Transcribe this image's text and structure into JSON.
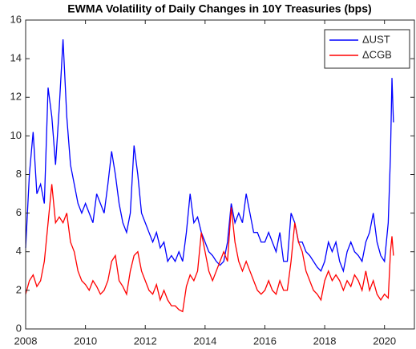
{
  "chart_data": {
    "type": "line",
    "title": "EWMA Volatility of Daily Changes in 10Y Treasuries (bps)",
    "x": [
      2008,
      2008.125,
      2008.25,
      2008.375,
      2008.5,
      2008.625,
      2008.75,
      2008.875,
      2009,
      2009.125,
      2009.25,
      2009.375,
      2009.5,
      2009.625,
      2009.75,
      2009.875,
      2010,
      2010.125,
      2010.25,
      2010.375,
      2010.5,
      2010.625,
      2010.75,
      2010.875,
      2011,
      2011.125,
      2011.25,
      2011.375,
      2011.5,
      2011.625,
      2011.75,
      2011.875,
      2012,
      2012.125,
      2012.25,
      2012.375,
      2012.5,
      2012.625,
      2012.75,
      2012.875,
      2013,
      2013.125,
      2013.25,
      2013.375,
      2013.5,
      2013.625,
      2013.75,
      2013.875,
      2014,
      2014.125,
      2014.25,
      2014.375,
      2014.5,
      2014.625,
      2014.75,
      2014.875,
      2015,
      2015.125,
      2015.25,
      2015.375,
      2015.5,
      2015.625,
      2015.75,
      2015.875,
      2016,
      2016.125,
      2016.25,
      2016.375,
      2016.5,
      2016.625,
      2016.75,
      2016.875,
      2017,
      2017.125,
      2017.25,
      2017.375,
      2017.5,
      2017.625,
      2017.75,
      2017.875,
      2018,
      2018.125,
      2018.25,
      2018.375,
      2018.5,
      2018.625,
      2018.75,
      2018.875,
      2019,
      2019.125,
      2019.25,
      2019.375,
      2019.5,
      2019.625,
      2019.75,
      2019.875,
      2020,
      2020.125,
      2020.2,
      2020.25,
      2020.3
    ],
    "series": [
      {
        "name": "ΔUST",
        "color": "#0000ff",
        "values": [
          4.2,
          8.0,
          10.2,
          7.0,
          7.5,
          6.5,
          12.5,
          11.0,
          8.5,
          11.5,
          15.0,
          11.0,
          8.5,
          7.5,
          6.5,
          6.0,
          6.5,
          6.0,
          5.5,
          7.0,
          6.5,
          6.0,
          7.5,
          9.2,
          8.0,
          6.5,
          5.5,
          5.0,
          6.0,
          9.5,
          8.0,
          6.0,
          5.5,
          5.0,
          4.5,
          5.0,
          4.2,
          4.5,
          3.5,
          3.8,
          3.5,
          4.0,
          3.5,
          5.0,
          7.0,
          5.5,
          5.8,
          5.0,
          4.5,
          4.0,
          3.8,
          3.5,
          3.3,
          3.5,
          4.5,
          6.5,
          5.5,
          6.0,
          5.5,
          7.0,
          6.0,
          5.0,
          5.0,
          4.5,
          4.5,
          5.0,
          4.5,
          4.0,
          5.0,
          3.5,
          3.5,
          6.0,
          5.5,
          4.5,
          4.5,
          4.0,
          3.8,
          3.5,
          3.2,
          3.0,
          3.5,
          4.5,
          4.0,
          4.5,
          3.5,
          3.0,
          4.0,
          4.5,
          4.0,
          3.8,
          3.5,
          4.5,
          5.0,
          6.0,
          4.5,
          3.8,
          3.5,
          5.5,
          9.0,
          13.0,
          10.7
        ]
      },
      {
        "name": "ΔCGB",
        "color": "#ff0000",
        "values": [
          1.8,
          2.5,
          2.8,
          2.2,
          2.5,
          3.5,
          5.5,
          7.5,
          5.5,
          5.8,
          5.5,
          6.0,
          4.5,
          4.0,
          3.0,
          2.5,
          2.3,
          2.0,
          2.5,
          2.2,
          1.8,
          2.0,
          2.5,
          3.5,
          3.8,
          2.5,
          2.2,
          1.8,
          3.0,
          3.8,
          4.0,
          3.0,
          2.5,
          2.0,
          1.8,
          2.3,
          1.5,
          2.0,
          1.5,
          1.2,
          1.2,
          1.0,
          0.9,
          2.2,
          2.8,
          2.5,
          3.0,
          5.0,
          4.0,
          3.0,
          2.5,
          3.0,
          3.5,
          4.0,
          3.5,
          6.3,
          4.5,
          3.5,
          3.0,
          3.5,
          3.0,
          2.5,
          2.0,
          1.8,
          2.0,
          2.5,
          2.0,
          1.8,
          2.5,
          2.0,
          2.0,
          3.5,
          5.5,
          4.5,
          4.0,
          3.0,
          2.5,
          2.0,
          1.8,
          1.5,
          2.5,
          3.0,
          2.5,
          2.8,
          2.5,
          2.0,
          2.5,
          2.2,
          2.8,
          2.5,
          2.0,
          3.0,
          2.0,
          2.5,
          1.8,
          1.5,
          1.8,
          1.6,
          4.0,
          4.8,
          3.8
        ]
      }
    ],
    "xlim": [
      2008,
      2021
    ],
    "xticks": [
      2008,
      2010,
      2012,
      2014,
      2016,
      2018,
      2020
    ],
    "ylim": [
      0,
      16
    ],
    "yticks": [
      0,
      2,
      4,
      6,
      8,
      10,
      12,
      14,
      16
    ],
    "grid": false,
    "legend": "upper right"
  }
}
